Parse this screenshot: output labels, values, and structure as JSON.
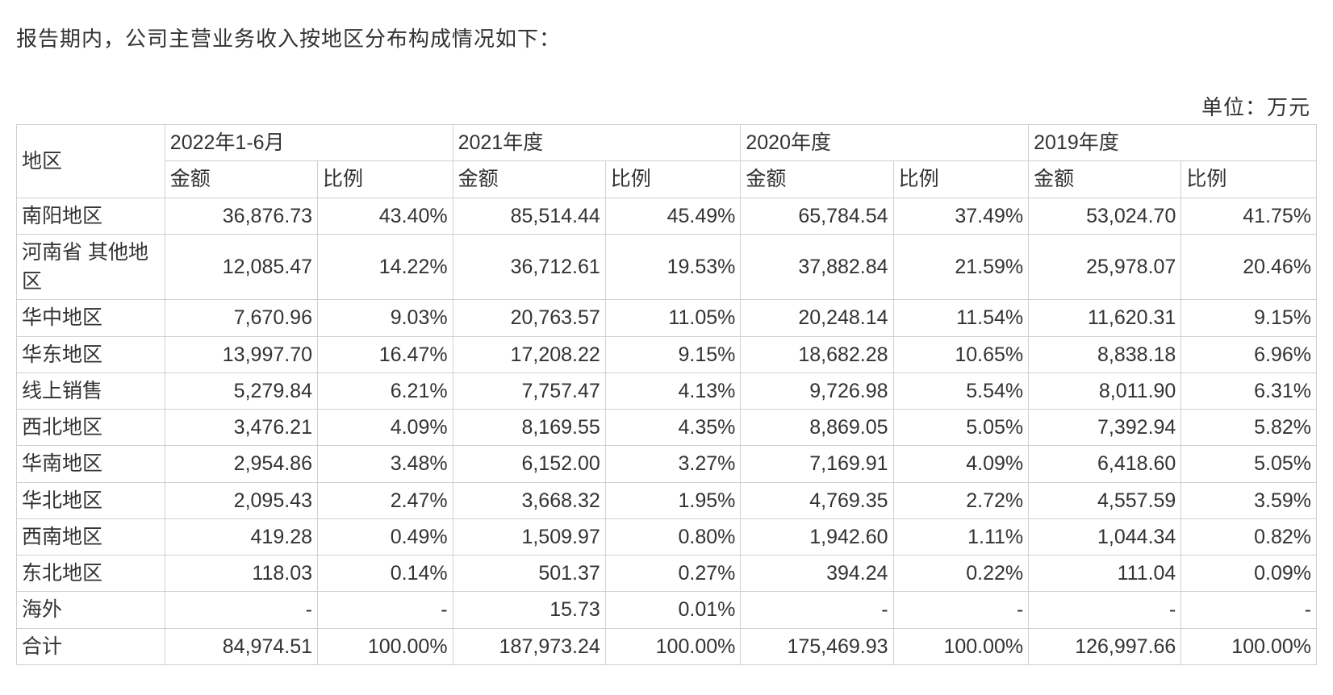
{
  "intro_text": "报告期内，公司主营业务收入按地区分布构成情况如下：",
  "unit_text": "单位：万元",
  "table": {
    "type": "table",
    "background_color": "#ffffff",
    "border_color": "#d0d0d0",
    "text_color": "#333333",
    "header_fontsize": 25,
    "cell_fontsize": 25,
    "number_align": "right",
    "region_align": "left",
    "region_header": "地区",
    "periods": [
      {
        "label": "2022年1-6月",
        "amount_label": "金额",
        "ratio_label": "比例"
      },
      {
        "label": "2021年度",
        "amount_label": "金额",
        "ratio_label": "比例"
      },
      {
        "label": "2020年度",
        "amount_label": "金额",
        "ratio_label": "比例"
      },
      {
        "label": "2019年度",
        "amount_label": "金额",
        "ratio_label": "比例"
      }
    ],
    "rows": [
      {
        "region": "南阳地区",
        "cells": [
          "36,876.73",
          "43.40%",
          "85,514.44",
          "45.49%",
          "65,784.54",
          "37.49%",
          "53,024.70",
          "41.75%"
        ]
      },
      {
        "region": "河南省 其他地区",
        "cells": [
          "12,085.47",
          "14.22%",
          "36,712.61",
          "19.53%",
          "37,882.84",
          "21.59%",
          "25,978.07",
          "20.46%"
        ]
      },
      {
        "region": "华中地区",
        "cells": [
          "7,670.96",
          "9.03%",
          "20,763.57",
          "11.05%",
          "20,248.14",
          "11.54%",
          "11,620.31",
          "9.15%"
        ]
      },
      {
        "region": "华东地区",
        "cells": [
          "13,997.70",
          "16.47%",
          "17,208.22",
          "9.15%",
          "18,682.28",
          "10.65%",
          "8,838.18",
          "6.96%"
        ]
      },
      {
        "region": "线上销售",
        "cells": [
          "5,279.84",
          "6.21%",
          "7,757.47",
          "4.13%",
          "9,726.98",
          "5.54%",
          "8,011.90",
          "6.31%"
        ]
      },
      {
        "region": "西北地区",
        "cells": [
          "3,476.21",
          "4.09%",
          "8,169.55",
          "4.35%",
          "8,869.05",
          "5.05%",
          "7,392.94",
          "5.82%"
        ]
      },
      {
        "region": "华南地区",
        "cells": [
          "2,954.86",
          "3.48%",
          "6,152.00",
          "3.27%",
          "7,169.91",
          "4.09%",
          "6,418.60",
          "5.05%"
        ]
      },
      {
        "region": "华北地区",
        "cells": [
          "2,095.43",
          "2.47%",
          "3,668.32",
          "1.95%",
          "4,769.35",
          "2.72%",
          "4,557.59",
          "3.59%"
        ]
      },
      {
        "region": "西南地区",
        "cells": [
          "419.28",
          "0.49%",
          "1,509.97",
          "0.80%",
          "1,942.60",
          "1.11%",
          "1,044.34",
          "0.82%"
        ]
      },
      {
        "region": "东北地区",
        "cells": [
          "118.03",
          "0.14%",
          "501.37",
          "0.27%",
          "394.24",
          "0.22%",
          "111.04",
          "0.09%"
        ]
      },
      {
        "region": "海外",
        "cells": [
          "-",
          "-",
          "15.73",
          "0.01%",
          "-",
          "-",
          "-",
          "-"
        ]
      },
      {
        "region": "合计",
        "cells": [
          "84,974.51",
          "100.00%",
          "187,973.24",
          "100.00%",
          "175,469.93",
          "100.00%",
          "126,997.66",
          "100.00%"
        ]
      }
    ]
  }
}
